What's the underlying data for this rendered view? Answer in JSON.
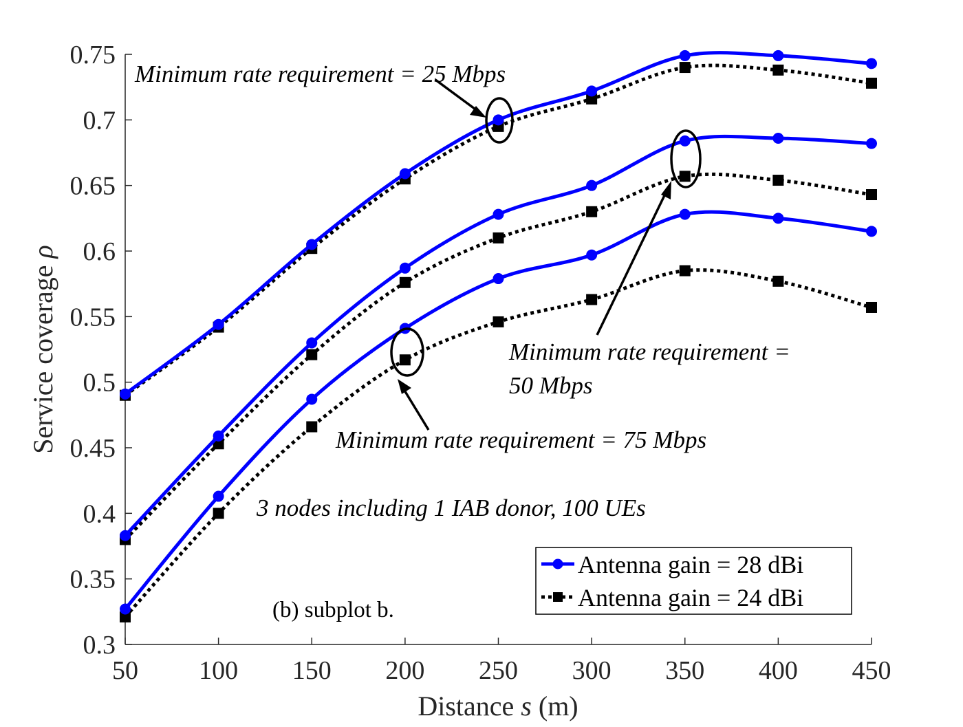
{
  "chart_data": {
    "type": "line",
    "xlabel": "Distance",
    "xlabel_symbol": "s",
    "xlabel_unit": "(m)",
    "ylabel": "Service coverage",
    "ylabel_symbol": "ρ",
    "xlim": [
      50,
      450
    ],
    "ylim": [
      0.3,
      0.75
    ],
    "xticks": [
      50,
      100,
      150,
      200,
      250,
      300,
      350,
      400,
      450
    ],
    "xtick_labels": [
      "50",
      "100",
      "150",
      "200",
      "250",
      "300",
      "350",
      "400",
      "450"
    ],
    "yticks": [
      0.3,
      0.35,
      0.4,
      0.45,
      0.5,
      0.55,
      0.6,
      0.65,
      0.7,
      0.75
    ],
    "ytick_labels": [
      "0.3",
      "0.35",
      "0.4",
      "0.45",
      "0.5",
      "0.55",
      "0.6",
      "0.65",
      "0.7",
      "0.75"
    ],
    "x": [
      50,
      100,
      150,
      200,
      250,
      300,
      350,
      400,
      450
    ],
    "series": [
      {
        "name": "Antenna gain = 28 dBi",
        "group": "Minimum rate requirement = 25 Mbps",
        "style": "solid",
        "marker": "circle",
        "color": "#0000ff",
        "values": [
          0.491,
          0.544,
          0.605,
          0.659,
          0.7,
          0.722,
          0.749,
          0.749,
          0.743
        ]
      },
      {
        "name": "Antenna gain = 24 dBi",
        "group": "Minimum rate requirement = 25 Mbps",
        "style": "dotted",
        "marker": "square",
        "color": "#000000",
        "values": [
          0.49,
          0.542,
          0.602,
          0.655,
          0.695,
          0.716,
          0.74,
          0.738,
          0.728
        ]
      },
      {
        "name": "Antenna gain = 28 dBi",
        "group": "Minimum rate requirement = 50 Mbps",
        "style": "solid",
        "marker": "circle",
        "color": "#0000ff",
        "values": [
          0.383,
          0.459,
          0.53,
          0.587,
          0.628,
          0.65,
          0.684,
          0.686,
          0.682
        ]
      },
      {
        "name": "Antenna gain = 24 dBi",
        "group": "Minimum rate requirement = 50 Mbps",
        "style": "dotted",
        "marker": "square",
        "color": "#000000",
        "values": [
          0.38,
          0.453,
          0.521,
          0.576,
          0.61,
          0.63,
          0.657,
          0.654,
          0.643
        ]
      },
      {
        "name": "Antenna gain = 28 dBi",
        "group": "Minimum rate requirement = 75 Mbps",
        "style": "solid",
        "marker": "circle",
        "color": "#0000ff",
        "values": [
          0.327,
          0.413,
          0.487,
          0.541,
          0.579,
          0.597,
          0.628,
          0.625,
          0.615
        ]
      },
      {
        "name": "Antenna gain = 24 dBi",
        "group": "Minimum rate requirement = 75 Mbps",
        "style": "dotted",
        "marker": "square",
        "color": "#000000",
        "values": [
          0.321,
          0.4,
          0.466,
          0.517,
          0.546,
          0.563,
          0.585,
          0.577,
          0.557
        ]
      }
    ],
    "legend": {
      "placement": "bottom-right",
      "entries": [
        {
          "label": "Antenna gain = 28 dBi",
          "style": "solid",
          "marker": "circle",
          "color": "#0000ff"
        },
        {
          "label": "Antenna gain = 24 dBi",
          "style": "dotted",
          "marker": "square",
          "color": "#000000"
        }
      ]
    },
    "annotations": {
      "rate_25": "Minimum rate requirement = 25 Mbps",
      "rate_50_line1": "Minimum rate requirement =",
      "rate_50_line2": "50 Mbps",
      "rate_75": "Minimum rate requirement = 75 Mbps",
      "setup": "3 nodes including 1 IAB donor, 100 UEs",
      "caption": "(b) subplot b."
    }
  }
}
